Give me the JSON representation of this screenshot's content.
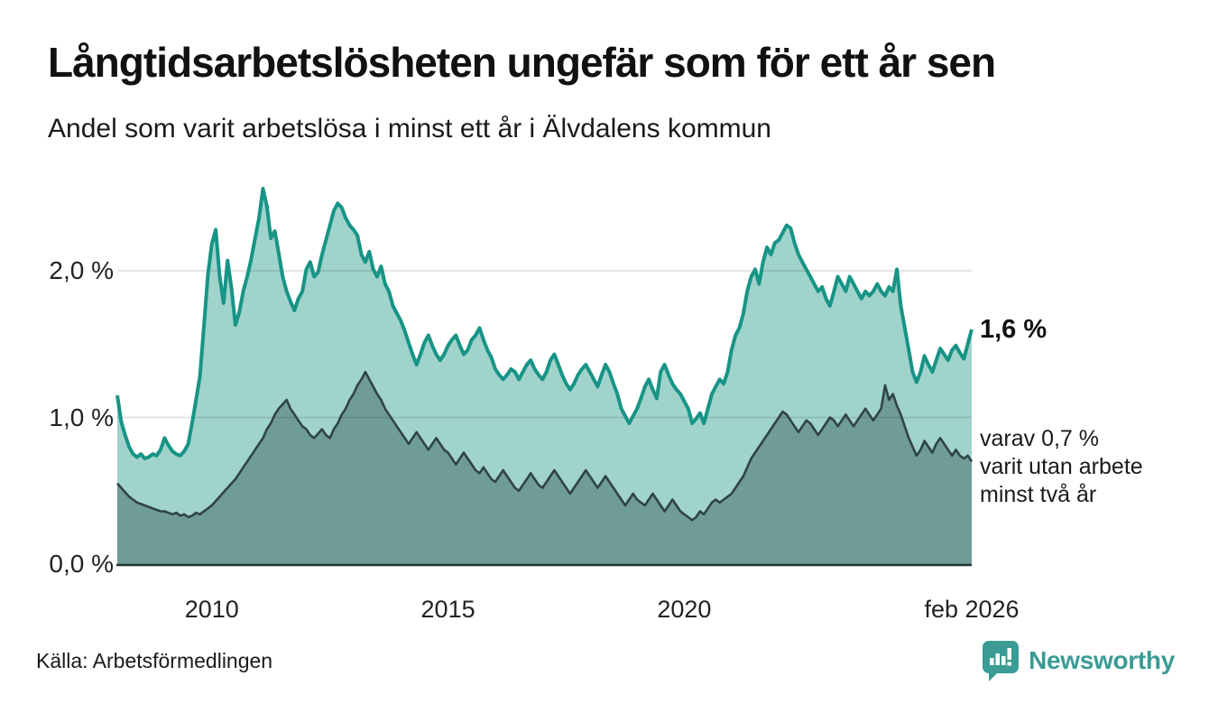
{
  "header": {
    "title": "Långtidsarbetslösheten ungefär som för ett år sen",
    "subtitle": "Andel som varit arbetslösa i minst ett år i Älvdalens kommun"
  },
  "chart_data": {
    "type": "area",
    "title": "Långtidsarbetslösheten ungefär som för ett år sen",
    "subtitle": "Andel som varit arbetslösa i minst ett år i Älvdalens kommun",
    "unit": "%",
    "frequency": "monthly",
    "x_start": "2008-01",
    "x_end": "2026-02",
    "ylim": [
      0,
      2.75
    ],
    "grid": "horizontal",
    "legend_position": "none",
    "yticks": [
      {
        "value": 0,
        "label": "0,0 %"
      },
      {
        "value": 1,
        "label": "1,0 %"
      },
      {
        "value": 2,
        "label": "2,0 %"
      }
    ],
    "xticks": [
      {
        "month_index": 24,
        "label": "2010"
      },
      {
        "month_index": 84,
        "label": "2015"
      },
      {
        "month_index": 144,
        "label": "2020"
      },
      {
        "month_index": 217,
        "label": "feb 2026"
      }
    ],
    "series": [
      {
        "name": "Andel som varit arbetslösa i minst ett år",
        "color": "#179486",
        "fill": "#a0d3cc",
        "latest_value": 1.6,
        "values": [
          1.15,
          0.97,
          0.88,
          0.8,
          0.75,
          0.73,
          0.75,
          0.72,
          0.73,
          0.75,
          0.74,
          0.78,
          0.86,
          0.81,
          0.77,
          0.75,
          0.74,
          0.77,
          0.82,
          0.96,
          1.12,
          1.28,
          1.62,
          1.97,
          2.18,
          2.28,
          1.96,
          1.78,
          2.07,
          1.88,
          1.63,
          1.72,
          1.86,
          1.96,
          2.08,
          2.22,
          2.36,
          2.56,
          2.44,
          2.22,
          2.27,
          2.12,
          1.96,
          1.86,
          1.79,
          1.73,
          1.81,
          1.86,
          2.01,
          2.06,
          1.96,
          1.99,
          2.11,
          2.21,
          2.31,
          2.41,
          2.46,
          2.43,
          2.36,
          2.31,
          2.28,
          2.24,
          2.11,
          2.06,
          2.13,
          2.01,
          1.96,
          2.03,
          1.91,
          1.86,
          1.76,
          1.71,
          1.66,
          1.59,
          1.51,
          1.43,
          1.36,
          1.43,
          1.51,
          1.56,
          1.49,
          1.43,
          1.39,
          1.43,
          1.49,
          1.53,
          1.56,
          1.49,
          1.43,
          1.46,
          1.53,
          1.56,
          1.61,
          1.53,
          1.46,
          1.41,
          1.33,
          1.29,
          1.26,
          1.29,
          1.33,
          1.31,
          1.26,
          1.31,
          1.36,
          1.39,
          1.33,
          1.29,
          1.26,
          1.31,
          1.39,
          1.43,
          1.36,
          1.29,
          1.23,
          1.19,
          1.23,
          1.29,
          1.33,
          1.36,
          1.31,
          1.26,
          1.21,
          1.29,
          1.36,
          1.31,
          1.23,
          1.16,
          1.06,
          1.01,
          0.96,
          1.01,
          1.06,
          1.13,
          1.21,
          1.26,
          1.19,
          1.13,
          1.31,
          1.36,
          1.29,
          1.23,
          1.19,
          1.16,
          1.11,
          1.06,
          0.96,
          0.99,
          1.03,
          0.96,
          1.06,
          1.16,
          1.21,
          1.26,
          1.23,
          1.31,
          1.46,
          1.56,
          1.61,
          1.71,
          1.86,
          1.96,
          2.01,
          1.91,
          2.06,
          2.16,
          2.11,
          2.19,
          2.21,
          2.26,
          2.31,
          2.29,
          2.19,
          2.11,
          2.06,
          2.01,
          1.96,
          1.91,
          1.86,
          1.89,
          1.81,
          1.76,
          1.86,
          1.96,
          1.91,
          1.86,
          1.96,
          1.91,
          1.86,
          1.81,
          1.86,
          1.83,
          1.86,
          1.91,
          1.86,
          1.83,
          1.89,
          1.86,
          2.01,
          1.76,
          1.61,
          1.46,
          1.31,
          1.24,
          1.31,
          1.42,
          1.36,
          1.31,
          1.39,
          1.47,
          1.43,
          1.39,
          1.46,
          1.49,
          1.44,
          1.4,
          1.5,
          1.6
        ]
      },
      {
        "name": "varav utan arbete minst två år",
        "color": "#2f4445",
        "fill": "#6f9c96",
        "latest_value": 0.7,
        "values": [
          0.55,
          0.52,
          0.49,
          0.46,
          0.44,
          0.42,
          0.41,
          0.4,
          0.39,
          0.38,
          0.37,
          0.36,
          0.36,
          0.35,
          0.34,
          0.35,
          0.33,
          0.34,
          0.32,
          0.33,
          0.35,
          0.34,
          0.36,
          0.38,
          0.4,
          0.43,
          0.46,
          0.49,
          0.52,
          0.55,
          0.58,
          0.62,
          0.66,
          0.7,
          0.74,
          0.78,
          0.82,
          0.86,
          0.92,
          0.96,
          1.02,
          1.06,
          1.09,
          1.12,
          1.06,
          1.02,
          0.98,
          0.94,
          0.92,
          0.88,
          0.86,
          0.89,
          0.92,
          0.88,
          0.86,
          0.92,
          0.96,
          1.02,
          1.06,
          1.12,
          1.16,
          1.22,
          1.26,
          1.31,
          1.26,
          1.21,
          1.16,
          1.12,
          1.06,
          1.02,
          0.98,
          0.94,
          0.9,
          0.86,
          0.82,
          0.86,
          0.9,
          0.86,
          0.82,
          0.78,
          0.82,
          0.86,
          0.82,
          0.78,
          0.76,
          0.72,
          0.68,
          0.72,
          0.76,
          0.72,
          0.68,
          0.64,
          0.62,
          0.66,
          0.62,
          0.58,
          0.56,
          0.6,
          0.64,
          0.6,
          0.56,
          0.52,
          0.5,
          0.54,
          0.58,
          0.62,
          0.58,
          0.54,
          0.52,
          0.56,
          0.6,
          0.64,
          0.6,
          0.56,
          0.52,
          0.48,
          0.52,
          0.56,
          0.6,
          0.64,
          0.6,
          0.56,
          0.52,
          0.56,
          0.6,
          0.56,
          0.52,
          0.48,
          0.44,
          0.4,
          0.44,
          0.48,
          0.44,
          0.42,
          0.4,
          0.44,
          0.48,
          0.44,
          0.4,
          0.36,
          0.4,
          0.44,
          0.4,
          0.36,
          0.34,
          0.32,
          0.3,
          0.32,
          0.36,
          0.34,
          0.38,
          0.42,
          0.44,
          0.42,
          0.44,
          0.46,
          0.48,
          0.52,
          0.56,
          0.6,
          0.66,
          0.72,
          0.76,
          0.8,
          0.84,
          0.88,
          0.92,
          0.96,
          1.0,
          1.04,
          1.02,
          0.98,
          0.94,
          0.9,
          0.94,
          0.98,
          0.96,
          0.92,
          0.88,
          0.92,
          0.96,
          1.0,
          0.98,
          0.94,
          0.98,
          1.02,
          0.98,
          0.94,
          0.98,
          1.02,
          1.06,
          1.02,
          0.98,
          1.02,
          1.06,
          1.22,
          1.12,
          1.16,
          1.08,
          1.02,
          0.94,
          0.86,
          0.8,
          0.74,
          0.78,
          0.84,
          0.8,
          0.76,
          0.82,
          0.86,
          0.82,
          0.78,
          0.74,
          0.78,
          0.74,
          0.72,
          0.74,
          0.7
        ]
      }
    ],
    "annotations": {
      "latest_value_label": "1,6 %",
      "secondary_line1": "varav 0,7 %",
      "secondary_line2": "varit utan arbete",
      "secondary_line3": "minst två år"
    }
  },
  "footer": {
    "source": "Källa: Arbetsförmedlingen",
    "brand": "Newsworthy"
  },
  "colors": {
    "line_total": "#179486",
    "fill_total": "#a0d3cc",
    "line_two_years": "#2f4445",
    "fill_two_years": "#6f9c96",
    "baseline": "#1f3433",
    "gridline": "#dcdcdc",
    "brand_teal": "#3a9c94"
  }
}
